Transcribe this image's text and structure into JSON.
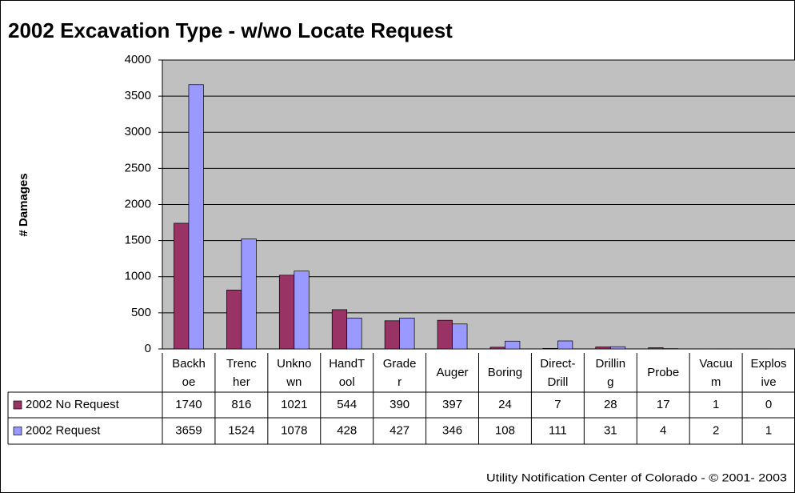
{
  "chart_data": {
    "type": "bar",
    "title": "2002 Excavation Type - w/wo Locate Request",
    "y_label": "# Damages",
    "footer": "Utility Notification Center of Colorado - © 2001- 2003",
    "categories": [
      "Backhoe",
      "Trencher",
      "Unknown",
      "HandTool",
      "Grader",
      "Auger",
      "Boring",
      "Direct-Drill",
      "Drilling",
      "Probe",
      "Vacuum",
      "Explosive"
    ],
    "series": [
      {
        "name": "2002 No Request",
        "color": "#993366",
        "values": [
          1740,
          816,
          1021,
          544,
          390,
          397,
          24,
          7,
          28,
          17,
          1,
          0
        ]
      },
      {
        "name": "2002 Request",
        "color": "#9999ff",
        "values": [
          3659,
          1524,
          1078,
          428,
          427,
          346,
          108,
          111,
          31,
          4,
          2,
          1
        ]
      }
    ],
    "ylim": [
      0,
      4000
    ],
    "yticks": [
      0,
      500,
      1000,
      1500,
      2000,
      2500,
      3000,
      3500,
      4000
    ],
    "grid": true
  }
}
